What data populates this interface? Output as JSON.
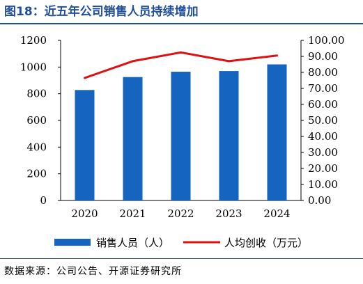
{
  "title": "图18：近五年公司销售人员持续增加",
  "source": "数据来源：公司公告、开源证券研究所",
  "colors": {
    "bar": "#1565c0",
    "line": "#e01010",
    "title": "#1f4e9c"
  },
  "chart_data": {
    "type": "bar",
    "categories": [
      "2020",
      "2021",
      "2022",
      "2023",
      "2024"
    ],
    "series": [
      {
        "name": "销售人员（人）",
        "type": "bar",
        "axis": "left",
        "values": [
          828,
          925,
          965,
          970,
          1020
        ]
      },
      {
        "name": "人均创收（万元）",
        "type": "line",
        "axis": "right",
        "values": [
          76.5,
          87.0,
          92.5,
          87.0,
          90.5
        ]
      }
    ],
    "y_left": {
      "min": 0,
      "max": 1200,
      "step": 200,
      "ticks": [
        "0",
        "200",
        "400",
        "600",
        "800",
        "1000",
        "1200"
      ]
    },
    "y_right": {
      "min": 0,
      "max": 100,
      "step": 10,
      "ticks": [
        "0.00",
        "10.00",
        "20.00",
        "30.00",
        "40.00",
        "50.00",
        "60.00",
        "70.00",
        "80.00",
        "90.00",
        "100.00"
      ]
    },
    "grid": false,
    "legend": "bottom"
  }
}
